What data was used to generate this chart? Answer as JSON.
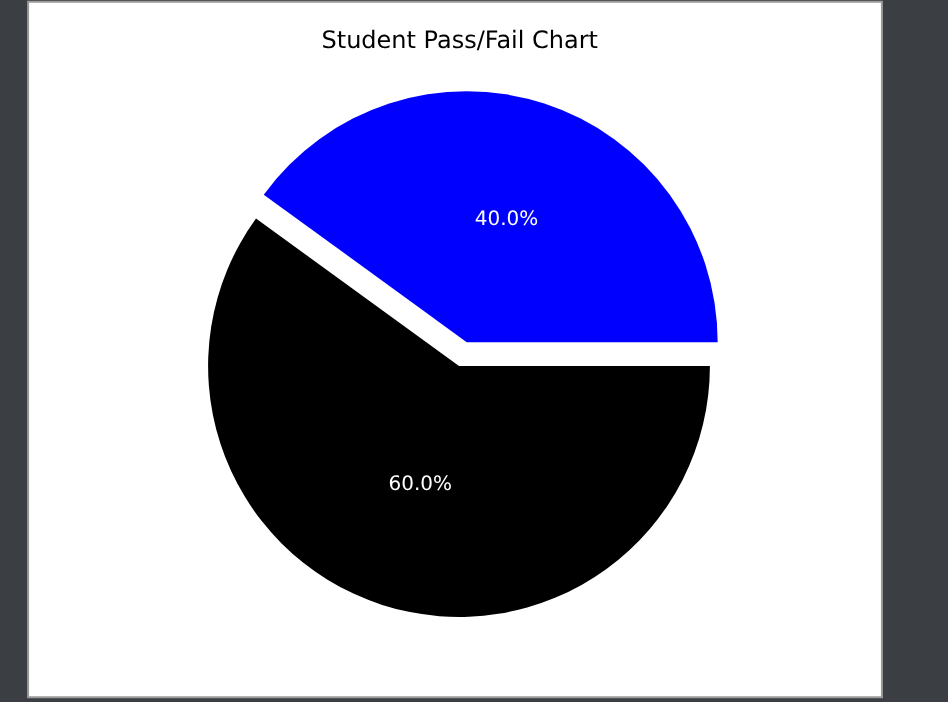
{
  "chart_data": {
    "type": "pie",
    "title": "Student Pass/Fail Chart",
    "categories": [
      null,
      null
    ],
    "values": [
      40,
      60
    ],
    "value_labels": [
      "40.0%",
      "60.0%"
    ],
    "colors": [
      "#0000ff",
      "#000000"
    ],
    "legend": false
  }
}
